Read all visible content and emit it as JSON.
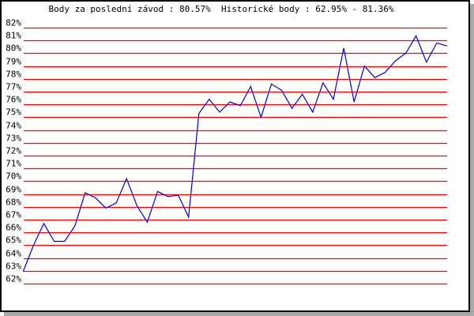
{
  "chart_data": {
    "type": "line",
    "title": "Body za poslední závod : 80.57%  Historické body : 62.95% - 81.36%",
    "xlabel": "",
    "ylabel": "",
    "ylim": [
      62,
      82
    ],
    "y_ticks": [
      "62%",
      "63%",
      "64%",
      "65%",
      "66%",
      "67%",
      "68%",
      "69%",
      "70%",
      "71%",
      "72%",
      "73%",
      "74%",
      "75%",
      "76%",
      "77%",
      "78%",
      "79%",
      "80%",
      "81%",
      "82%"
    ],
    "grid": true,
    "grid_color": "#ff0000",
    "line_color": "#0000cc",
    "series": [
      {
        "values": [
          62.95,
          65.0,
          66.7,
          65.3,
          65.3,
          66.5,
          69.1,
          68.7,
          67.9,
          68.3,
          70.2,
          68.1,
          66.8,
          69.2,
          68.8,
          68.9,
          67.2,
          75.3,
          76.4,
          75.4,
          76.2,
          75.9,
          77.4,
          75.0,
          77.6,
          77.1,
          75.7,
          76.8,
          75.4,
          77.7,
          76.4,
          80.4,
          76.2,
          79.0,
          78.1,
          78.5,
          79.4,
          80.0,
          81.36,
          79.3,
          80.8,
          80.57
        ]
      }
    ]
  }
}
